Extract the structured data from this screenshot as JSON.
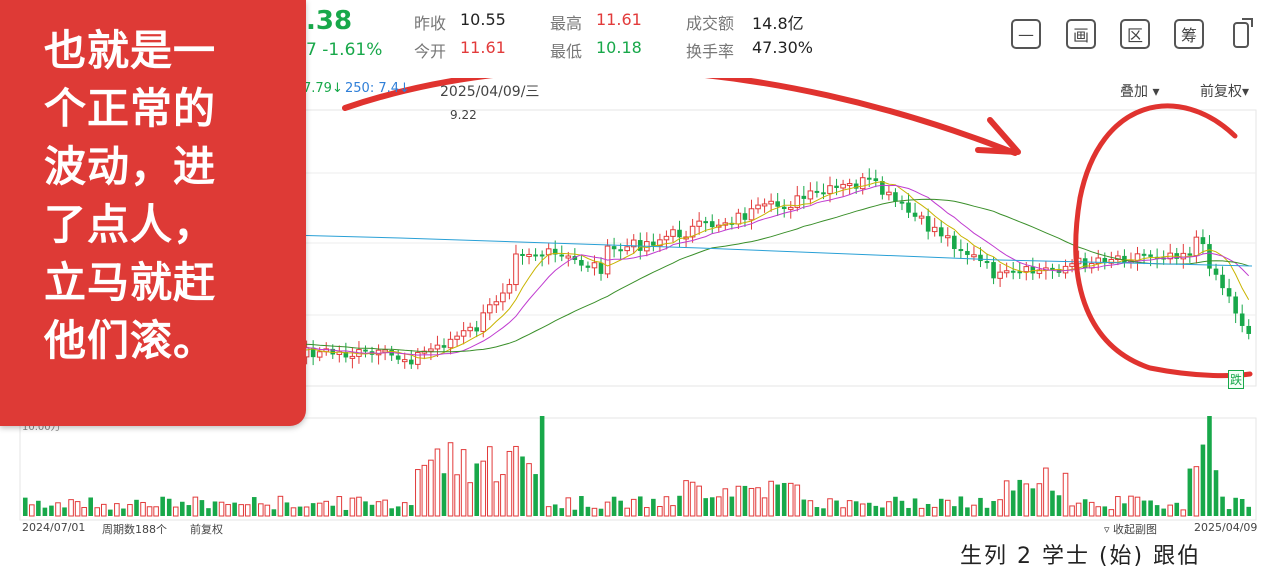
{
  "header": {
    "price_fragment": ".38",
    "change_fragment": "7 -1.61%",
    "prev_close_label": "昨收",
    "prev_close": "10.55",
    "open_label": "今开",
    "open": "11.61",
    "high_label": "最高",
    "high": "11.61",
    "low_label": "最低",
    "low": "10.18",
    "turnover_label": "成交额",
    "turnover": "14.8亿",
    "turnover_rate_label": "换手率",
    "turnover_rate": "47.30%"
  },
  "toolbar": {
    "icons": [
      "minus-icon",
      "window-icon",
      "region-icon",
      "chips-icon",
      "rotate-icon"
    ],
    "region_label": "区",
    "chips_label": "筹",
    "window_label": "画"
  },
  "chart": {
    "ma_fragment_1": "7.79↓",
    "ma_fragment_2": "250: 7.4↓",
    "date_label": "2025/04/09/三",
    "overlay_label": "叠加",
    "adjust_label": "前复权",
    "max_label": "9.22",
    "fall_badge": "跌",
    "volume_fragment": "10.00万",
    "start_date": "2024/07/01",
    "period_label": "周期数188个",
    "adjust_bottom": "前复权",
    "collapse_label": "收起副图",
    "end_date": "2025/04/09"
  },
  "annotation": {
    "text": "也就是一\n个正常的\n波动，进\n了点人，\n立马就赶\n他们滚。",
    "color": "#de3a36"
  },
  "footer_fragment": "生列 2 学士 (始) 跟伯"
}
